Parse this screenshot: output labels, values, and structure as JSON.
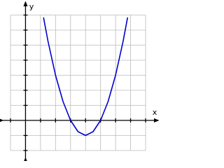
{
  "chart_data": {
    "type": "line",
    "x_label": "x",
    "y_label": "y",
    "x": [
      1.2,
      1.5,
      2,
      2.5,
      3,
      3.5,
      4,
      4.5,
      5,
      5.5,
      6,
      6.5,
      6.8
    ],
    "series": [
      {
        "color": "#0000cc",
        "values": [
          6.84,
          5.25,
          3,
          1.25,
          0,
          -0.75,
          -1,
          -0.75,
          0,
          1.25,
          3,
          5.25,
          6.84
        ]
      }
    ],
    "xlim": [
      -1,
      8
    ],
    "ylim": [
      -2,
      7
    ],
    "xticks": [
      -1,
      0,
      1,
      2,
      3,
      4,
      5,
      6,
      7,
      8
    ],
    "yticks": [
      -2,
      -1,
      0,
      1,
      2,
      3,
      4,
      5,
      6,
      7
    ],
    "grid": true
  }
}
